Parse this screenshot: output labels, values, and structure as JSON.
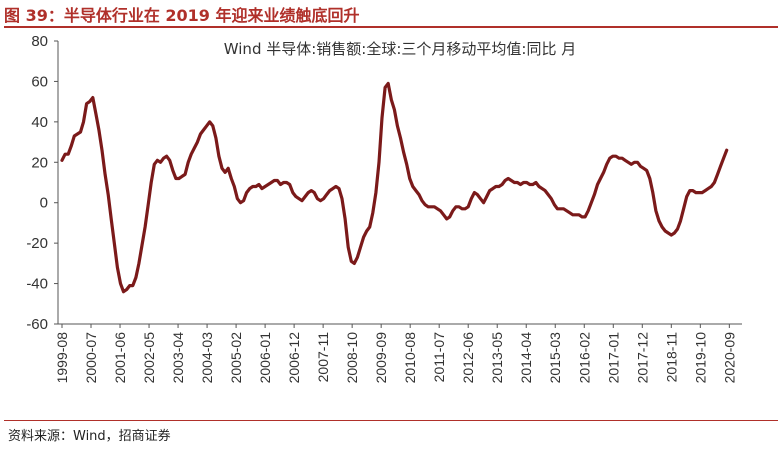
{
  "figure": {
    "title": "图 39：半导体行业在 2019 年迎来业绩触底回升",
    "source": "资料来源：Wind，招商证券"
  },
  "chart_data": {
    "type": "line",
    "title": "",
    "xlabel": "",
    "ylabel": "",
    "ylim": [
      -60,
      80
    ],
    "yticks": [
      80,
      60,
      40,
      20,
      0,
      -20,
      -40,
      -60
    ],
    "xticks": [
      "1999-08",
      "2000-07",
      "2001-06",
      "2002-05",
      "2003-04",
      "2004-03",
      "2005-02",
      "2006-01",
      "2006-12",
      "2007-11",
      "2008-10",
      "2009-09",
      "2010-08",
      "2011-07",
      "2012-06",
      "2013-05",
      "2014-04",
      "2015-03",
      "2016-02",
      "2017-01",
      "2017-12",
      "2018-11",
      "2019-10",
      "2020-09"
    ],
    "grid": false,
    "legend_position": "top-center",
    "colors": {
      "line": "#7b1a1a",
      "title": "#b0302a",
      "axis": "#555555"
    },
    "series": [
      {
        "name": "Wind 半导体:销售额:全球:三个月移动平均值:同比 月",
        "x_start": "1999-08",
        "x_step": "month",
        "values": [
          21,
          24,
          24,
          28,
          33,
          34,
          35,
          40,
          49,
          50,
          52,
          44,
          36,
          26,
          14,
          4,
          -8,
          -20,
          -32,
          -40,
          -44,
          -43,
          -41,
          -41,
          -37,
          -30,
          -21,
          -12,
          -1,
          10,
          19,
          21,
          20,
          22,
          23,
          21,
          16,
          12,
          12,
          13,
          14,
          20,
          24,
          27,
          30,
          34,
          36,
          38,
          40,
          38,
          32,
          23,
          17,
          15,
          17,
          12,
          8,
          2,
          0,
          1,
          5,
          7,
          8,
          8,
          9,
          7,
          8,
          9,
          10,
          11,
          11,
          9,
          10,
          10,
          9,
          5,
          3,
          2,
          1,
          3,
          5,
          6,
          5,
          2,
          1,
          2,
          4,
          6,
          7,
          8,
          7,
          2,
          -8,
          -22,
          -29,
          -30,
          -27,
          -22,
          -17,
          -14,
          -12,
          -5,
          5,
          20,
          42,
          57,
          59,
          51,
          46,
          38,
          32,
          25,
          19,
          12,
          8,
          6,
          4,
          1,
          -1,
          -2,
          -2,
          -2,
          -3,
          -4,
          -6,
          -8,
          -7,
          -4,
          -2,
          -2,
          -3,
          -3,
          -2,
          2,
          5,
          4,
          2,
          0,
          3,
          6,
          7,
          8,
          8,
          9,
          11,
          12,
          11,
          10,
          10,
          9,
          10,
          10,
          9,
          9,
          10,
          8,
          7,
          6,
          4,
          2,
          -1,
          -3,
          -3,
          -3,
          -4,
          -5,
          -6,
          -6,
          -6,
          -7,
          -7,
          -4,
          0,
          4,
          9,
          12,
          15,
          19,
          22,
          23,
          23,
          22,
          22,
          21,
          20,
          19,
          20,
          20,
          18,
          17,
          16,
          12,
          5,
          -4,
          -9,
          -12,
          -14,
          -15,
          -16,
          -15,
          -13,
          -9,
          -3,
          3,
          6,
          6,
          5,
          5,
          5,
          6,
          7,
          8,
          10,
          14,
          18,
          22,
          26
        ]
      }
    ]
  }
}
